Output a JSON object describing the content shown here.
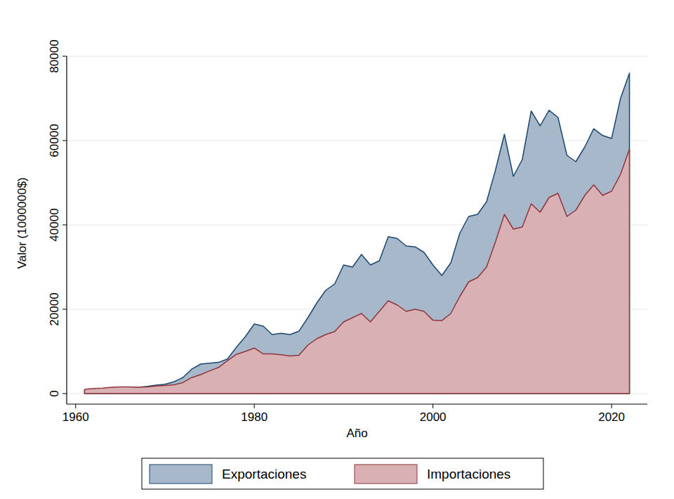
{
  "chart_data": {
    "type": "area",
    "x_label": "Año",
    "y_label": "Valor (1000000$)",
    "x": [
      1961,
      1962,
      1963,
      1964,
      1965,
      1966,
      1967,
      1968,
      1969,
      1970,
      1971,
      1972,
      1973,
      1974,
      1975,
      1976,
      1977,
      1978,
      1979,
      1980,
      1981,
      1982,
      1983,
      1984,
      1985,
      1986,
      1987,
      1988,
      1989,
      1990,
      1991,
      1992,
      1993,
      1994,
      1995,
      1996,
      1997,
      1998,
      1999,
      2000,
      2001,
      2002,
      2003,
      2004,
      2005,
      2006,
      2007,
      2008,
      2009,
      2010,
      2011,
      2012,
      2013,
      2014,
      2015,
      2016,
      2017,
      2018,
      2019,
      2020,
      2021,
      2022
    ],
    "series": [
      {
        "name": "Exportaciones",
        "color": "#a8b8cb",
        "values": [
          800,
          900,
          1100,
          1300,
          1400,
          1500,
          1500,
          1700,
          2000,
          2200,
          2800,
          3800,
          5800,
          7000,
          7200,
          7400,
          8200,
          11000,
          13500,
          16500,
          16000,
          14000,
          14300,
          14000,
          14800,
          18000,
          21500,
          24500,
          26000,
          30500,
          30000,
          33000,
          30500,
          31500,
          37200,
          36800,
          35000,
          34800,
          33500,
          30500,
          28000,
          31000,
          38000,
          42000,
          42500,
          45500,
          53000,
          61500,
          51500,
          55500,
          67000,
          63500,
          67200,
          65500,
          56500,
          55000,
          58500,
          62800,
          61200,
          60500,
          70000,
          76000
        ]
      },
      {
        "name": "Importaciones",
        "color": "#d9b0b4",
        "values": [
          1000,
          1200,
          1300,
          1500,
          1600,
          1600,
          1500,
          1600,
          1800,
          1900,
          2100,
          2600,
          3800,
          4500,
          5400,
          6200,
          7800,
          9300,
          10000,
          10800,
          9400,
          9400,
          9200,
          8900,
          9100,
          11500,
          13000,
          14000,
          14700,
          17000,
          18000,
          19000,
          17000,
          19500,
          22000,
          21000,
          19500,
          20000,
          19500,
          17400,
          17300,
          19000,
          23000,
          26500,
          27500,
          30000,
          36000,
          42500,
          39000,
          39500,
          45000,
          43000,
          46500,
          47500,
          42000,
          43500,
          47000,
          49500,
          47000,
          48000,
          52000,
          58000
        ]
      }
    ],
    "xlim": [
      1959,
      2024
    ],
    "ylim": [
      -2500,
      80000
    ],
    "xticks": [
      1960,
      1980,
      2000,
      2020
    ],
    "yticks": [
      0,
      20000,
      40000,
      60000,
      80000
    ],
    "grid": true,
    "legend": "bottom"
  }
}
